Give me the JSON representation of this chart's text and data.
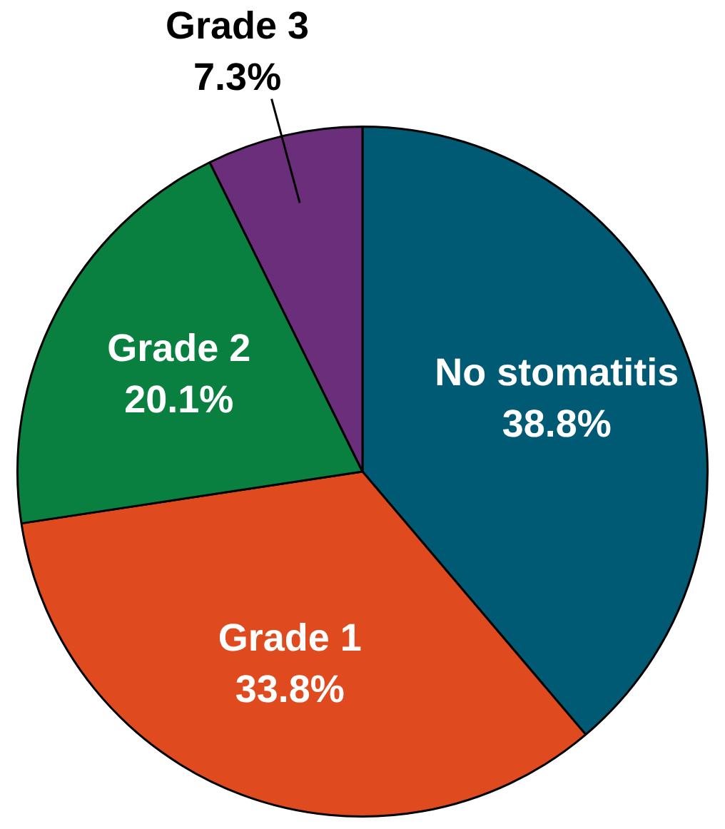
{
  "chart_data": {
    "type": "pie",
    "categories": [
      "No stomatitis",
      "Grade 1",
      "Grade 2",
      "Grade 3"
    ],
    "values": [
      38.8,
      33.8,
      20.1,
      7.3
    ],
    "value_labels": [
      "38.8%",
      "33.8%",
      "20.1%",
      "7.3%"
    ],
    "colors": [
      "#005a73",
      "#e04a1f",
      "#0a8040",
      "#6a2e7a"
    ],
    "legend": false
  }
}
